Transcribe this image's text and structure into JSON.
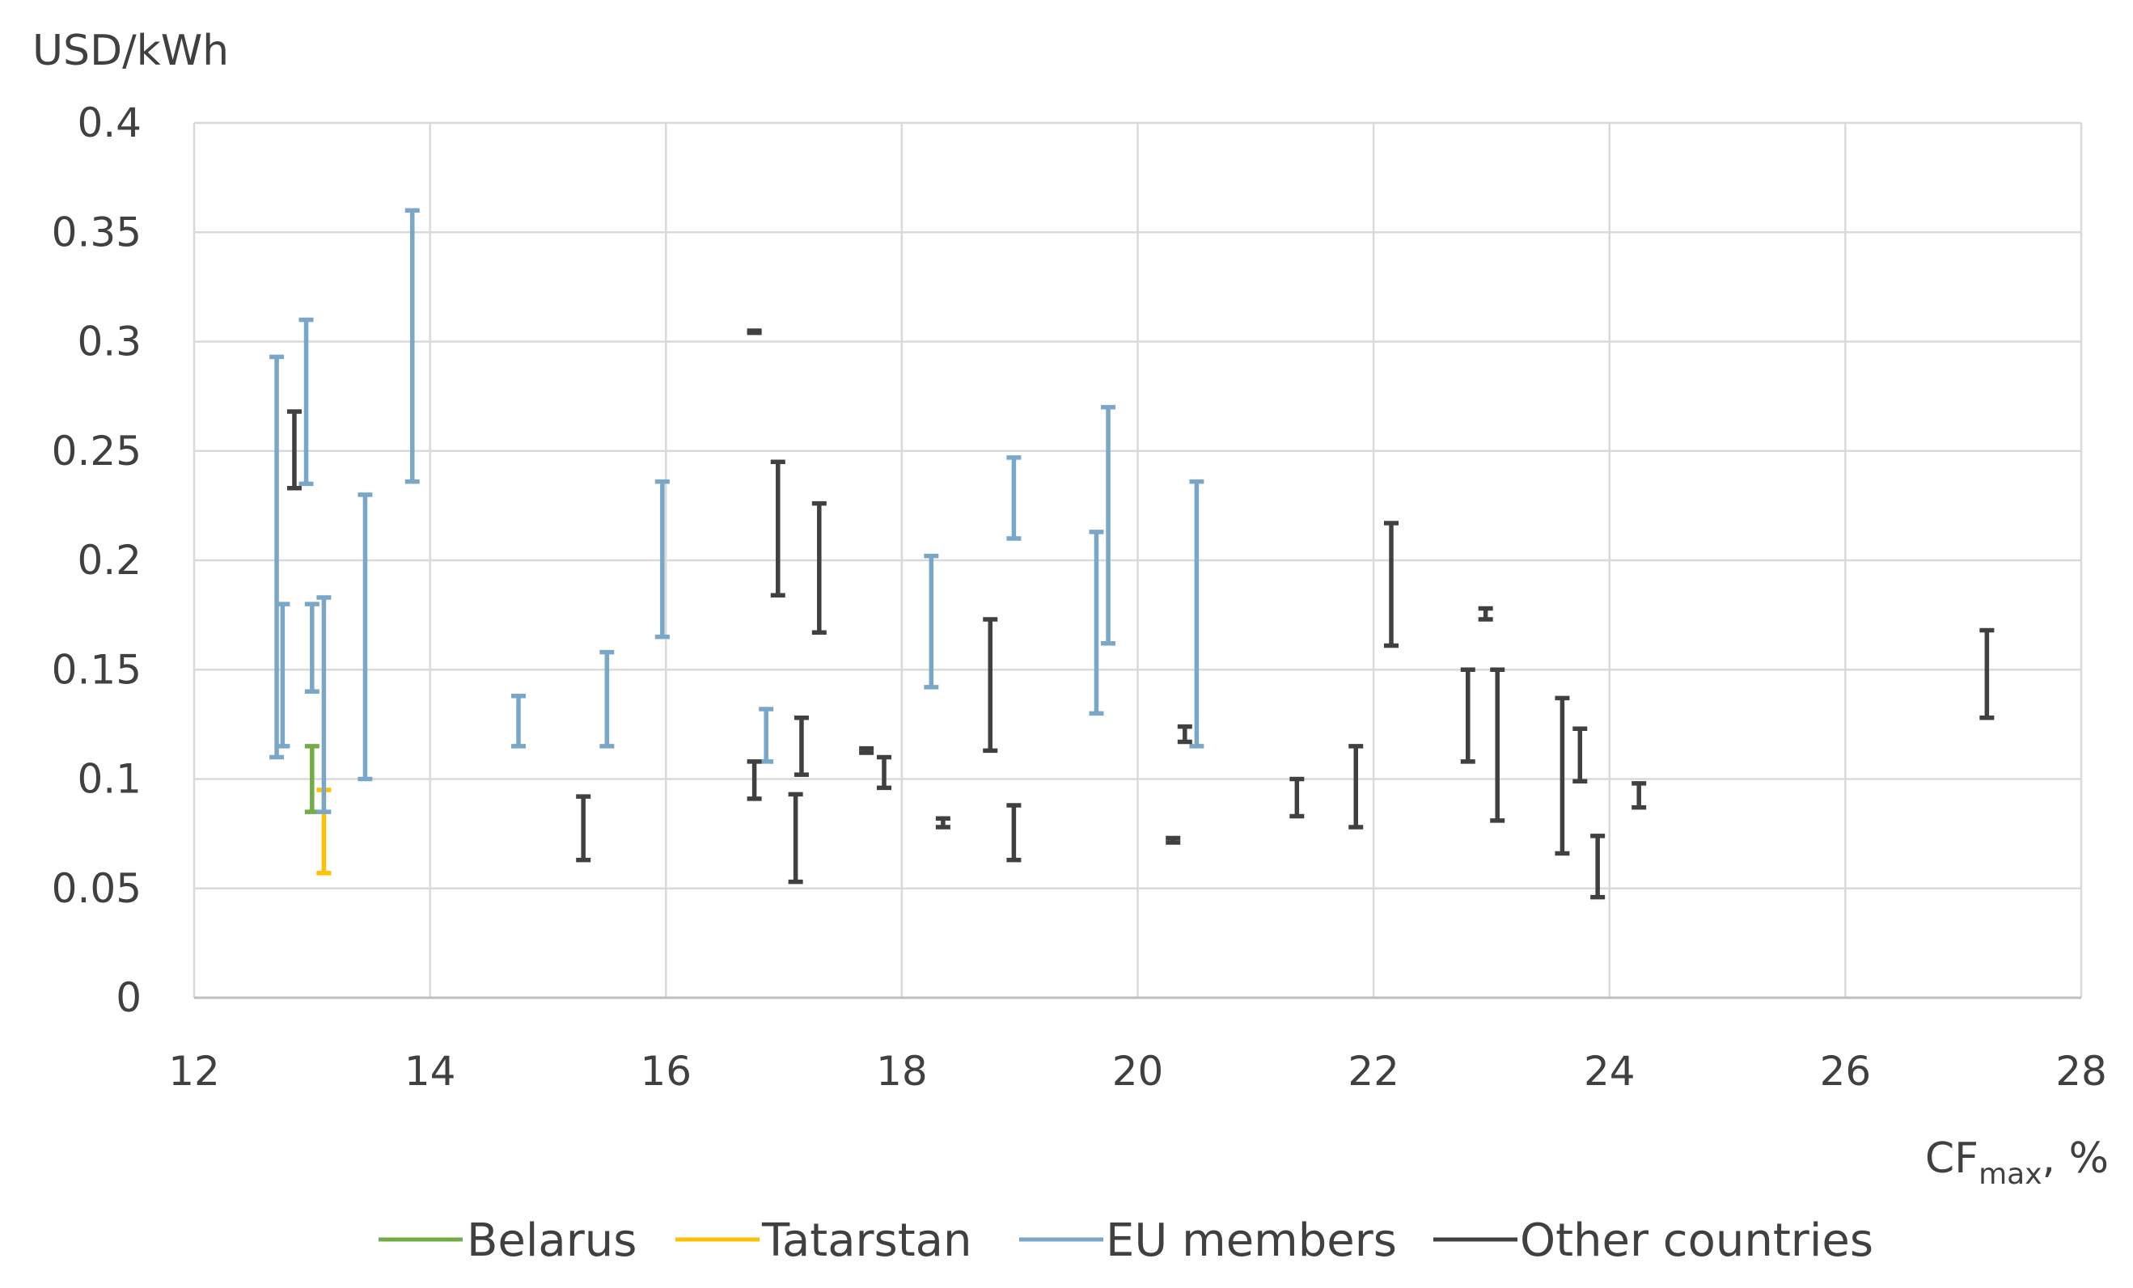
{
  "chart_data": {
    "type": "error-bar range",
    "ylabel": "USD/kWh",
    "xlabel": {
      "main": "CF",
      "sub": "max",
      "suffix": ", %"
    },
    "xlim": [
      12,
      28
    ],
    "ylim": [
      0,
      0.4
    ],
    "x_ticks": [
      12,
      14,
      16,
      18,
      20,
      22,
      24,
      26,
      28
    ],
    "y_ticks": [
      0,
      0.05,
      0.1,
      0.15,
      0.2,
      0.25,
      0.3,
      0.35,
      0.4
    ],
    "x_tick_labels": [
      "12",
      "14",
      "16",
      "18",
      "20",
      "22",
      "24",
      "26",
      "28"
    ],
    "y_tick_labels": [
      "0",
      "0.05",
      "0.1",
      "0.15",
      "0.2",
      "0.25",
      "0.3",
      "0.35",
      "0.4"
    ],
    "grid": true,
    "legend_position": "bottom",
    "series": [
      {
        "name": "Belarus",
        "color": "#70ad47",
        "ranges": [
          {
            "x": 13.0,
            "low": 0.085,
            "high": 0.115
          }
        ]
      },
      {
        "name": "Tatarstan",
        "color": "#ffc000",
        "ranges": [
          {
            "x": 13.1,
            "low": 0.057,
            "high": 0.095
          }
        ]
      },
      {
        "name": "EU members",
        "color": "#7aa6c8",
        "ranges": [
          {
            "x": 12.7,
            "low": 0.11,
            "high": 0.293
          },
          {
            "x": 12.75,
            "low": 0.115,
            "high": 0.18
          },
          {
            "x": 12.95,
            "low": 0.235,
            "high": 0.31
          },
          {
            "x": 13.0,
            "low": 0.14,
            "high": 0.18
          },
          {
            "x": 13.1,
            "low": 0.085,
            "high": 0.183
          },
          {
            "x": 13.45,
            "low": 0.1,
            "high": 0.23
          },
          {
            "x": 13.85,
            "low": 0.236,
            "high": 0.36
          },
          {
            "x": 14.75,
            "low": 0.115,
            "high": 0.138
          },
          {
            "x": 15.5,
            "low": 0.115,
            "high": 0.158
          },
          {
            "x": 15.97,
            "low": 0.165,
            "high": 0.236
          },
          {
            "x": 16.85,
            "low": 0.108,
            "high": 0.132
          },
          {
            "x": 18.25,
            "low": 0.142,
            "high": 0.202
          },
          {
            "x": 18.95,
            "low": 0.21,
            "high": 0.247
          },
          {
            "x": 19.65,
            "low": 0.13,
            "high": 0.213
          },
          {
            "x": 19.75,
            "low": 0.162,
            "high": 0.27
          },
          {
            "x": 20.5,
            "low": 0.115,
            "high": 0.236
          }
        ]
      },
      {
        "name": "Other countries",
        "color": "#404040",
        "ranges": [
          {
            "x": 12.85,
            "low": 0.233,
            "high": 0.268
          },
          {
            "x": 15.3,
            "low": 0.063,
            "high": 0.092
          },
          {
            "x": 16.75,
            "low": 0.304,
            "high": 0.305
          },
          {
            "x": 16.75,
            "low": 0.091,
            "high": 0.108
          },
          {
            "x": 16.95,
            "low": 0.184,
            "high": 0.245
          },
          {
            "x": 17.1,
            "low": 0.053,
            "high": 0.093
          },
          {
            "x": 17.15,
            "low": 0.102,
            "high": 0.128
          },
          {
            "x": 17.3,
            "low": 0.167,
            "high": 0.226
          },
          {
            "x": 17.7,
            "low": 0.112,
            "high": 0.114
          },
          {
            "x": 17.85,
            "low": 0.096,
            "high": 0.11
          },
          {
            "x": 18.35,
            "low": 0.078,
            "high": 0.082
          },
          {
            "x": 18.75,
            "low": 0.113,
            "high": 0.173
          },
          {
            "x": 18.95,
            "low": 0.063,
            "high": 0.088
          },
          {
            "x": 20.3,
            "low": 0.071,
            "high": 0.073
          },
          {
            "x": 20.4,
            "low": 0.117,
            "high": 0.124
          },
          {
            "x": 21.35,
            "low": 0.083,
            "high": 0.1
          },
          {
            "x": 21.85,
            "low": 0.078,
            "high": 0.115
          },
          {
            "x": 22.15,
            "low": 0.161,
            "high": 0.217
          },
          {
            "x": 22.8,
            "low": 0.108,
            "high": 0.15
          },
          {
            "x": 22.95,
            "low": 0.173,
            "high": 0.178
          },
          {
            "x": 23.05,
            "low": 0.081,
            "high": 0.15
          },
          {
            "x": 23.6,
            "low": 0.066,
            "high": 0.137
          },
          {
            "x": 23.75,
            "low": 0.099,
            "high": 0.123
          },
          {
            "x": 23.9,
            "low": 0.046,
            "high": 0.074
          },
          {
            "x": 24.25,
            "low": 0.087,
            "high": 0.098
          },
          {
            "x": 27.2,
            "low": 0.128,
            "high": 0.168
          }
        ]
      }
    ]
  }
}
